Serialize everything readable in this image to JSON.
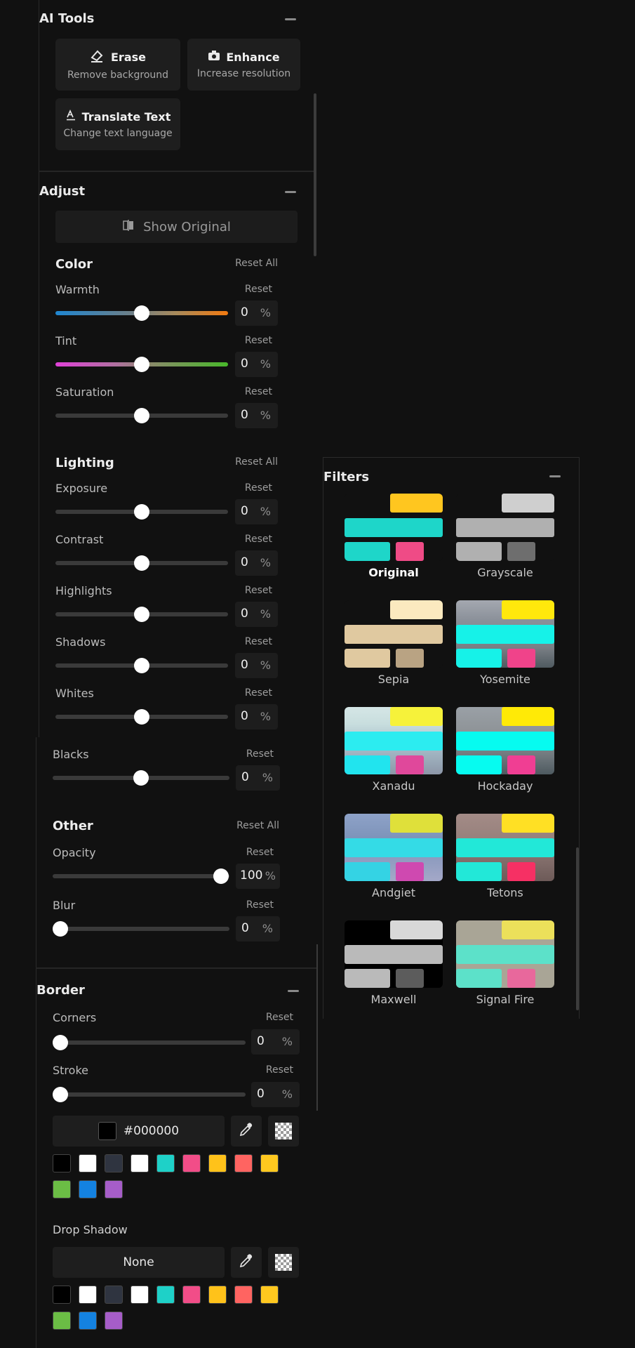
{
  "ai_tools": {
    "title": "AI Tools",
    "erase": {
      "label": "Erase",
      "sub": "Remove background"
    },
    "enhance": {
      "label": "Enhance",
      "sub": "Increase resolution"
    },
    "translate": {
      "label": "Translate Text",
      "sub": "Change text language"
    }
  },
  "adjust": {
    "title": "Adjust",
    "show_original": "Show Original",
    "color": {
      "title": "Color",
      "reset_all": "Reset All",
      "warmth": {
        "label": "Warmth",
        "reset": "Reset",
        "value": "0",
        "unit": "%",
        "level": 0.5
      },
      "tint": {
        "label": "Tint",
        "reset": "Reset",
        "value": "0",
        "unit": "%",
        "level": 0.5
      },
      "saturation": {
        "label": "Saturation",
        "reset": "Reset",
        "value": "0",
        "unit": "%",
        "level": 0.5
      }
    },
    "lighting": {
      "title": "Lighting",
      "reset_all": "Reset All",
      "exposure": {
        "label": "Exposure",
        "reset": "Reset",
        "value": "0",
        "unit": "%",
        "level": 0.5
      },
      "contrast": {
        "label": "Contrast",
        "reset": "Reset",
        "value": "0",
        "unit": "%",
        "level": 0.5
      },
      "highlights": {
        "label": "Highlights",
        "reset": "Reset",
        "value": "0",
        "unit": "%",
        "level": 0.5
      },
      "shadows": {
        "label": "Shadows",
        "reset": "Reset",
        "value": "0",
        "unit": "%",
        "level": 0.5
      },
      "whites": {
        "label": "Whites",
        "reset": "Reset",
        "value": "0",
        "unit": "%",
        "level": 0.5
      },
      "blacks": {
        "label": "Blacks",
        "reset": "Reset",
        "value": "0",
        "unit": "%",
        "level": 0.5
      }
    },
    "other": {
      "title": "Other",
      "reset_all": "Reset All",
      "opacity": {
        "label": "Opacity",
        "reset": "Reset",
        "value": "100",
        "unit": "%",
        "level": 1.0
      },
      "blur": {
        "label": "Blur",
        "reset": "Reset",
        "value": "0",
        "unit": "%",
        "level": 0.0
      }
    }
  },
  "border": {
    "title": "Border",
    "corners": {
      "label": "Corners",
      "reset": "Reset",
      "value": "0",
      "unit": "%",
      "level": 0.0
    },
    "stroke": {
      "label": "Stroke",
      "reset": "Reset",
      "value": "0",
      "unit": "%",
      "level": 0.0
    },
    "color_value": "#000000",
    "swatches": [
      "#000000",
      "#ffffff",
      "#2f3440",
      "#ffffff",
      "#1ed1c8",
      "#f24d88",
      "#ffc21a",
      "#ff6461",
      "#ffc81f",
      "#6bbd45",
      "#1482e0",
      "#a65dc8"
    ],
    "drop_shadow_label": "Drop Shadow",
    "drop_shadow_value": "None",
    "shadow_swatches": [
      "#000000",
      "#ffffff",
      "#2f3440",
      "#ffffff",
      "#1ed1c8",
      "#f24d88",
      "#ffc21a",
      "#ff6461",
      "#ffc81f",
      "#6bbd45",
      "#1482e0",
      "#a65dc8"
    ]
  },
  "filters": {
    "title": "Filters",
    "items": [
      {
        "name": "Original",
        "active": true
      },
      {
        "name": "Grayscale"
      },
      {
        "name": "Sepia"
      },
      {
        "name": "Yosemite"
      },
      {
        "name": "Xanadu"
      },
      {
        "name": "Hockaday"
      },
      {
        "name": "Andgiet"
      },
      {
        "name": "Tetons"
      },
      {
        "name": "Maxwell"
      },
      {
        "name": "Signal Fire"
      }
    ]
  },
  "icons": {
    "erase": "eraser-icon",
    "enhance": "camera-icon",
    "translate": "translate-icon",
    "show_original": "compare-icon",
    "eyedropper": "eyedropper-icon",
    "transparent": "transparency-icon",
    "collapse": "minus-icon"
  }
}
